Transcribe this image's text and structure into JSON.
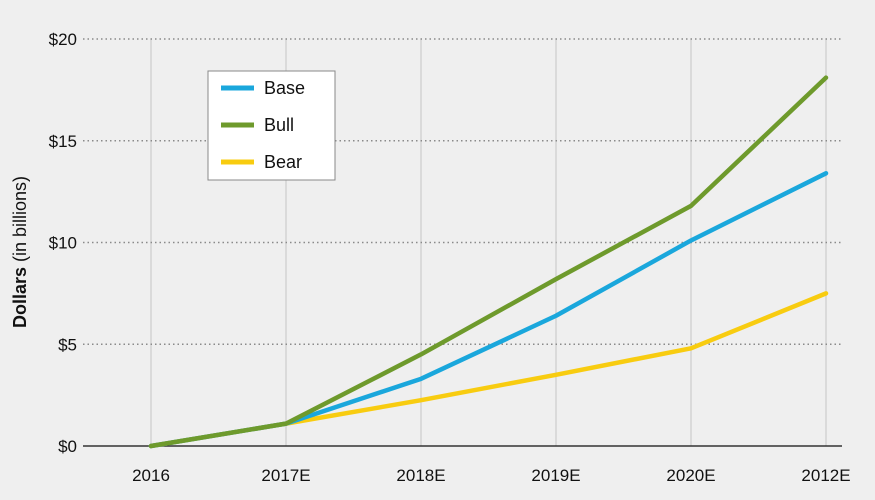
{
  "chart_data": {
    "type": "line",
    "categories": [
      "2016",
      "2017E",
      "2018E",
      "2019E",
      "2020E",
      "2012E"
    ],
    "series": [
      {
        "name": "Base",
        "color": "#1aa7dc",
        "values": [
          0.0,
          1.1,
          3.3,
          6.4,
          10.1,
          13.4
        ]
      },
      {
        "name": "Bull",
        "color": "#6e9a2c",
        "values": [
          0.0,
          1.1,
          4.5,
          8.2,
          11.8,
          18.1
        ]
      },
      {
        "name": "Bear",
        "color": "#f8cc10",
        "values": [
          0.0,
          1.1,
          2.25,
          3.5,
          4.8,
          7.5
        ]
      }
    ],
    "y_ticks": [
      {
        "value": 0,
        "label": "$0"
      },
      {
        "value": 5,
        "label": "$5"
      },
      {
        "value": 10,
        "label": "$10"
      },
      {
        "value": 15,
        "label": "$15"
      },
      {
        "value": 20,
        "label": "$20"
      }
    ],
    "ylim": [
      0,
      20
    ],
    "ylabel_bold": "Dollars",
    "ylabel_rest": " (in billions)",
    "title": "",
    "xlabel": "",
    "grid": true,
    "legend_position": "top-left"
  }
}
